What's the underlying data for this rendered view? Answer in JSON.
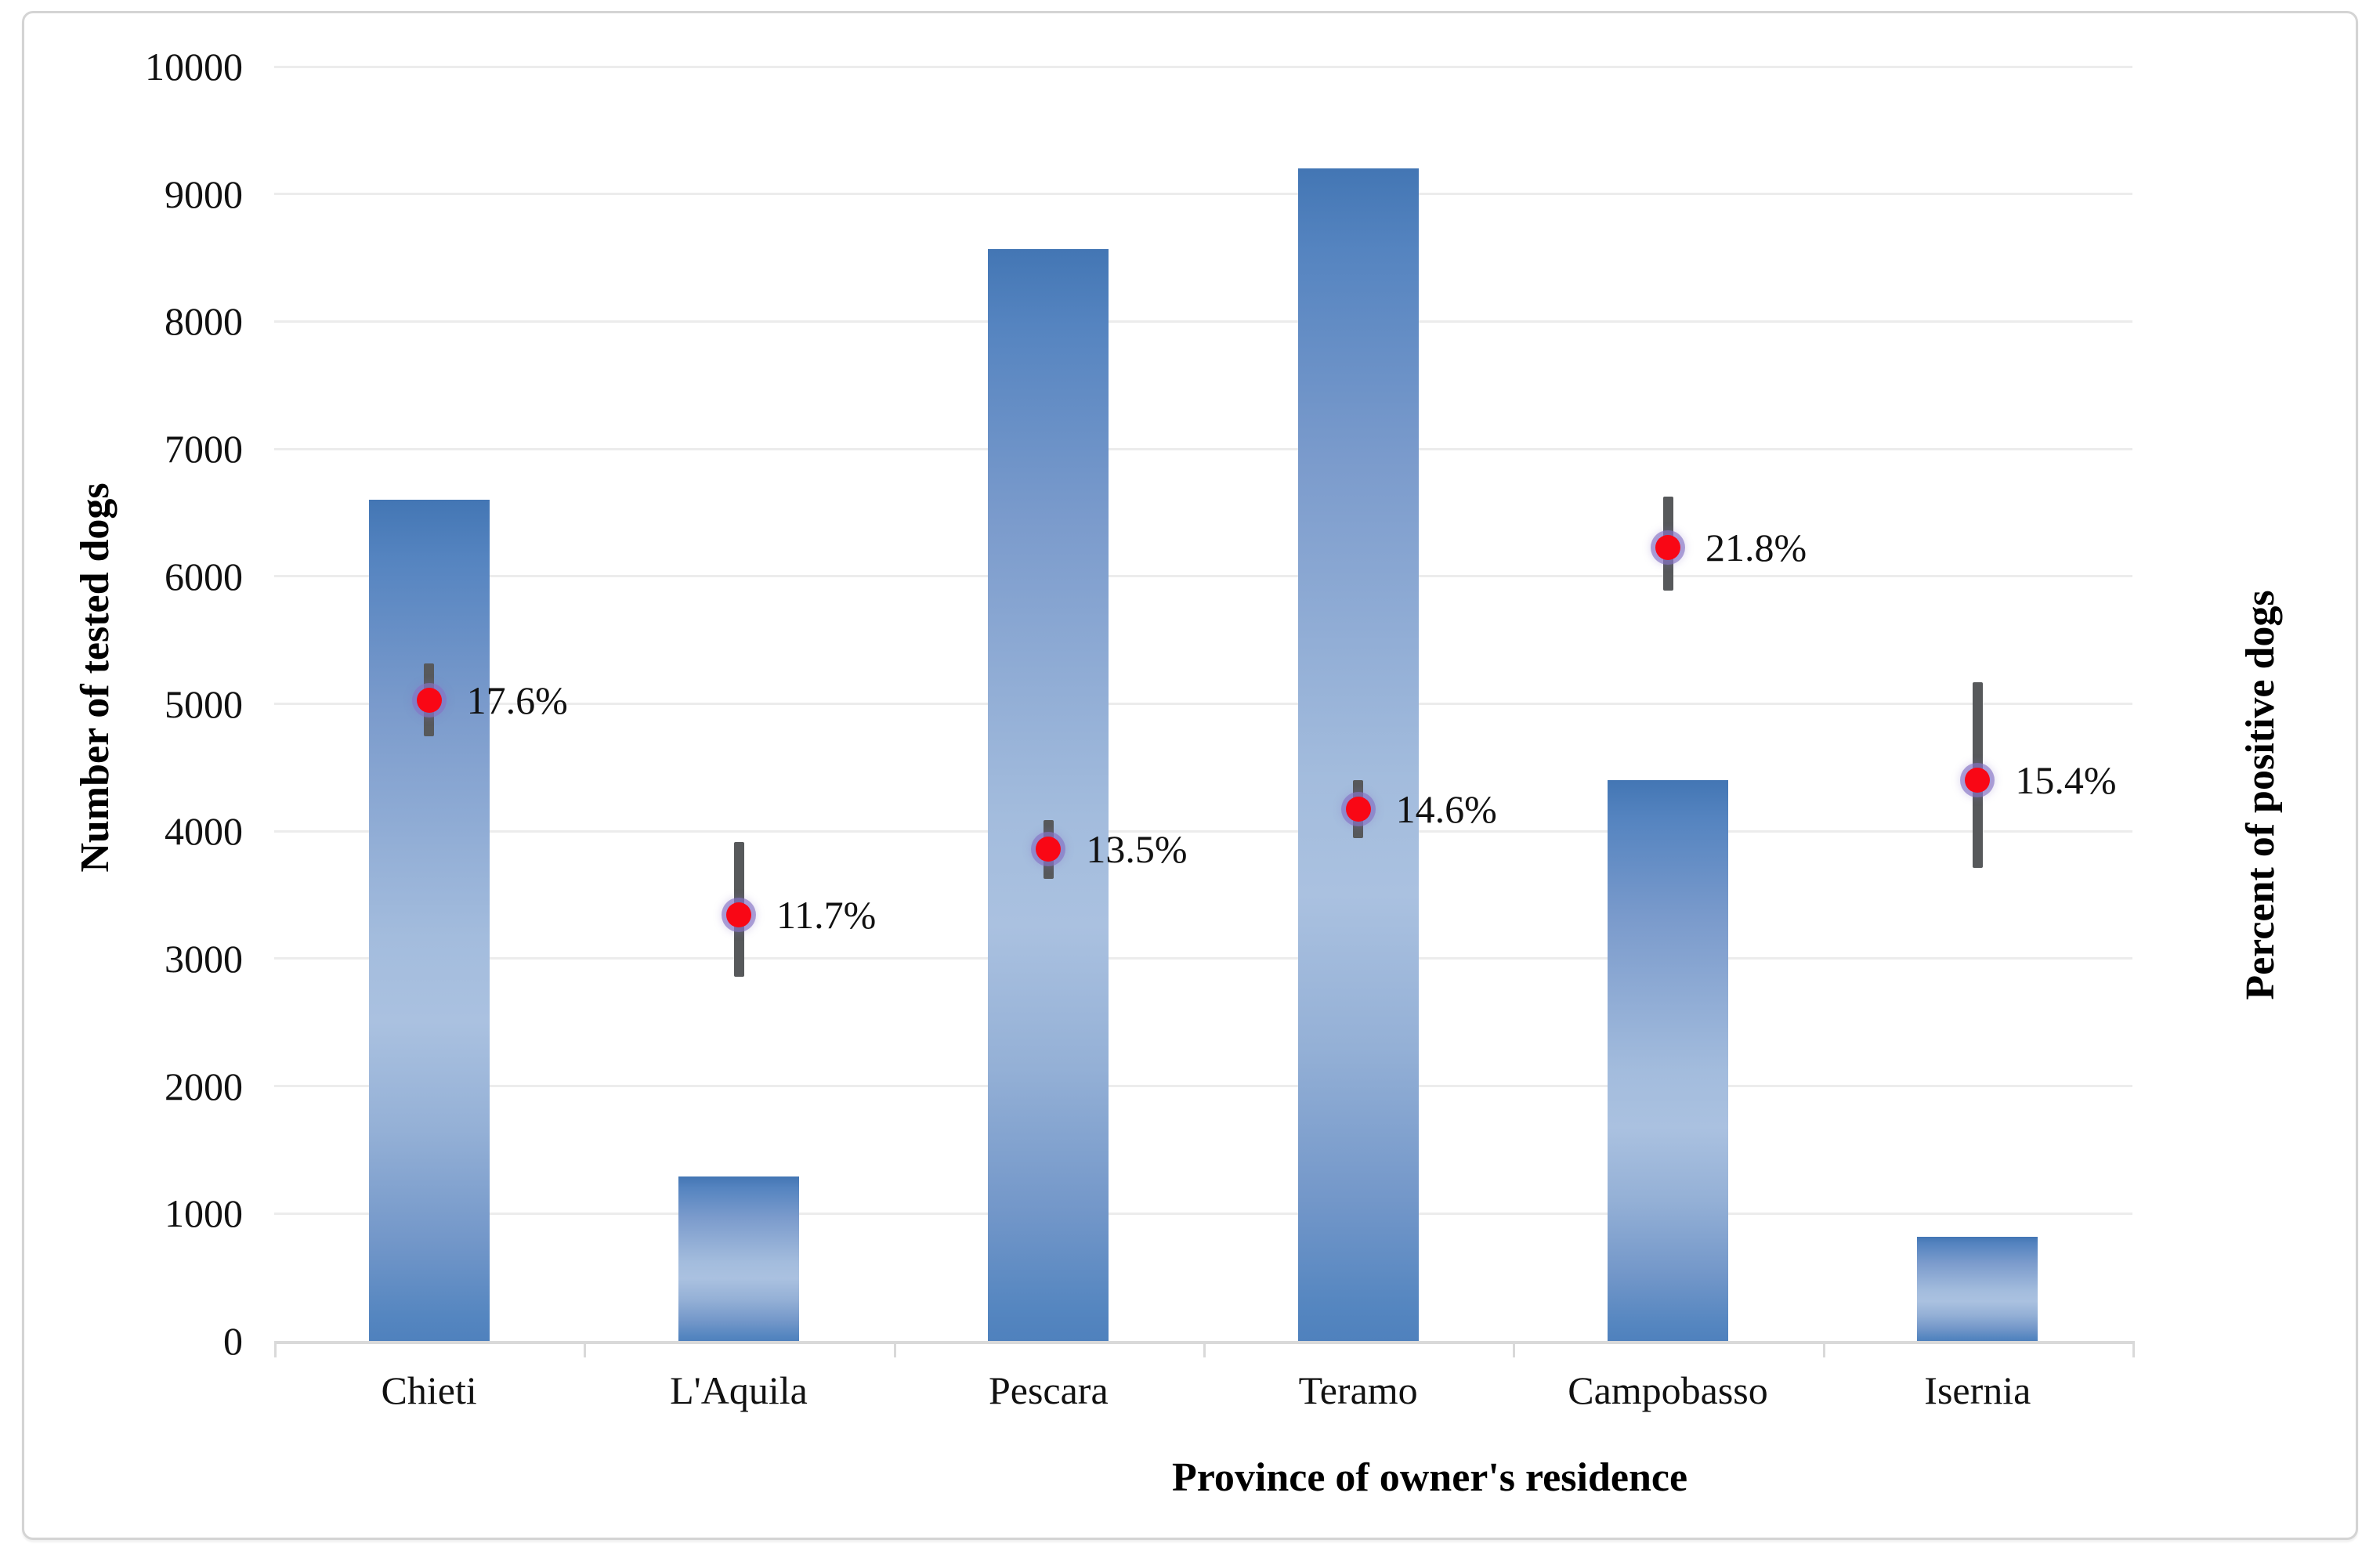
{
  "chart_data": {
    "type": "bar",
    "subtype": "bars-with-percent-markers-and-error-bars",
    "title": "",
    "categories": [
      "Chieti",
      "L'Aquila",
      "Pescara",
      "Teramo",
      "Campobasso",
      "Isernia"
    ],
    "series": [
      {
        "name": "Number of tested dogs",
        "type": "bar",
        "axis": "left",
        "values": [
          6600,
          1290,
          8570,
          9200,
          4400,
          820
        ]
      },
      {
        "name": "Percent of positive dogs",
        "type": "scatter",
        "axis": "right",
        "values_percent": [
          17.6,
          11.7,
          13.5,
          14.6,
          21.8,
          15.4
        ],
        "labels": [
          "17.6%",
          "11.7%",
          "13.5%",
          "14.6%",
          "21.8%",
          "15.4%"
        ],
        "ci_low_percent": [
          16.6,
          10.0,
          12.7,
          13.8,
          20.6,
          13.0
        ],
        "ci_high_percent": [
          18.6,
          13.7,
          14.3,
          15.4,
          23.2,
          18.1
        ]
      }
    ],
    "axes": {
      "left": {
        "title": "Number of tested dogs",
        "min": 0,
        "max": 10000,
        "ticks": [
          0,
          1000,
          2000,
          3000,
          4000,
          5000,
          6000,
          7000,
          8000,
          9000,
          10000
        ]
      },
      "right": {
        "title": "Percent of positive dogs",
        "min": 0,
        "max": 35,
        "tick_labels_visible": false
      },
      "x": {
        "title": "Province of owner's residence"
      }
    },
    "grid": "horizontal",
    "legend": "none"
  },
  "colors": {
    "bar_top": "#4376b4",
    "bar_light_mid": "#aac1e0",
    "bar_bottom": "#4f81bd",
    "marker_fill": "#f90715",
    "marker_halo": "#8673c4",
    "error_bar": "#57595b",
    "gridline": "#ececec",
    "axis_line": "#d9d9d9",
    "frame_border": "#d4d4d4",
    "text": "#111111"
  }
}
